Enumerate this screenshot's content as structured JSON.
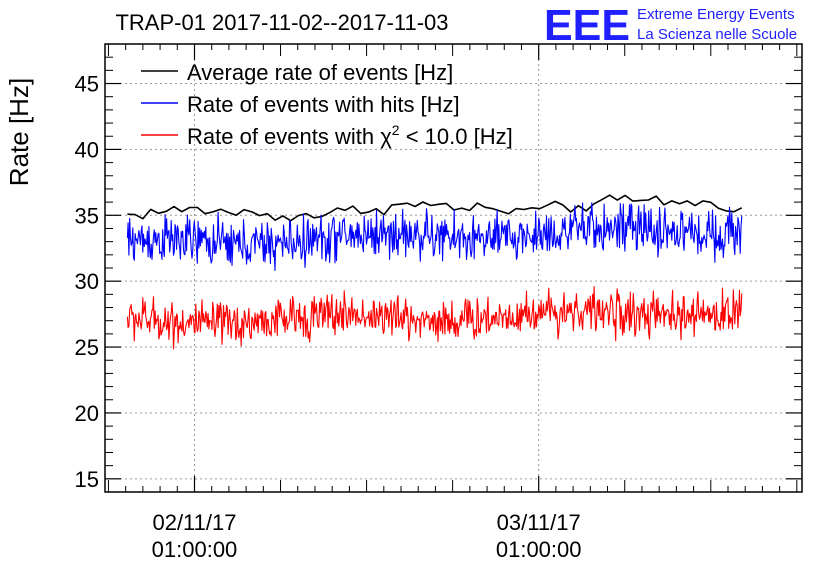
{
  "chart_data": {
    "type": "line",
    "title": "TRAP-01 2017-11-02--2017-11-03",
    "ylabel": "Rate [Hz]",
    "xlabel": "",
    "ylim": [
      14,
      48
    ],
    "grid": true,
    "yticks": [
      15,
      20,
      25,
      30,
      35,
      40,
      45
    ],
    "ytick_labels": [
      "15",
      "20",
      "25",
      "30",
      "35",
      "40",
      "45"
    ],
    "xlim_hours": [
      -5.2,
      35.3
    ],
    "xticks_hours": [
      0,
      20
    ],
    "xtick_labels": [
      {
        "date": "02/11/17",
        "time": "01:00:00"
      },
      {
        "date": "03/11/17",
        "time": "01:00:00"
      }
    ],
    "logo": {
      "mark": "EEE",
      "line1": "Extreme Energy Events",
      "line2": "La Scienza nelle Scuole"
    },
    "legend_position": "top-left",
    "series": [
      {
        "name": "Average rate of events [Hz]",
        "legend_html": "Average rate of events [Hz]",
        "color": "#000000",
        "t_start": -3.9,
        "t_end": 31.8,
        "mean": 35.0,
        "trend": 1.0,
        "noise": 0.25,
        "points": 80
      },
      {
        "name": "Rate of events with hits [Hz]",
        "legend_html": "Rate of events with hits [Hz]",
        "color": "#0000ff",
        "t_start": -3.9,
        "t_end": 31.8,
        "mean": 32.8,
        "trend": 1.2,
        "noise": 0.9,
        "points": 800
      },
      {
        "name": "Rate of events with χ² < 10.0 [Hz]",
        "legend_prefix": "Rate of events with ",
        "legend_chi": "χ",
        "legend_sup": "2",
        "legend_suffix": " < 10.0 [Hz]",
        "color": "#ff0000",
        "t_start": -3.9,
        "t_end": 31.8,
        "mean": 26.9,
        "trend": 0.8,
        "noise": 0.8,
        "points": 800
      }
    ]
  }
}
